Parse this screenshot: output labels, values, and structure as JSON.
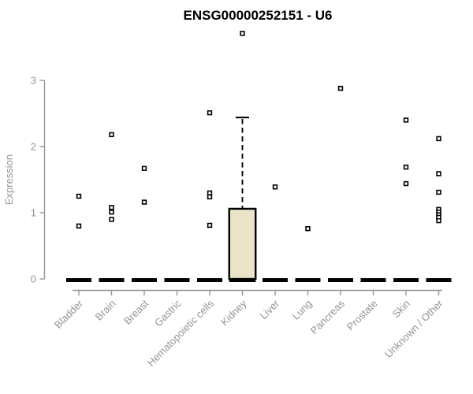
{
  "chart_data": {
    "type": "boxplot",
    "title": "ENSG00000252151 - U6",
    "ylabel": "Expression",
    "ylim": [
      0,
      3
    ],
    "yticks": [
      0,
      1,
      2,
      3
    ],
    "grid": false,
    "legend": "none",
    "categories": [
      "Bladder",
      "Brain",
      "Breast",
      "Gastric",
      "Hematopoietic cells",
      "Kidney",
      "Liver",
      "Lung",
      "Pancreas",
      "Prostate",
      "Skin",
      "Unknown / Other"
    ],
    "series": [
      {
        "name": "Bladder",
        "median": 0,
        "q1": 0,
        "q3": 0,
        "whisker_low": 0,
        "whisker_high": 0,
        "outliers": [
          1.25,
          0.8
        ]
      },
      {
        "name": "Brain",
        "median": 0,
        "q1": 0,
        "q3": 0,
        "whisker_low": 0,
        "whisker_high": 0,
        "outliers": [
          2.18,
          1.08,
          1.01,
          0.9
        ]
      },
      {
        "name": "Breast",
        "median": 0,
        "q1": 0,
        "q3": 0,
        "whisker_low": 0,
        "whisker_high": 0,
        "outliers": [
          1.67,
          1.16
        ]
      },
      {
        "name": "Gastric",
        "median": 0,
        "q1": 0,
        "q3": 0,
        "whisker_low": 0,
        "whisker_high": 0,
        "outliers": []
      },
      {
        "name": "Hematopoietic cells",
        "median": 0,
        "q1": 0,
        "q3": 0,
        "whisker_low": 0,
        "whisker_high": 0,
        "outliers": [
          2.51,
          1.3,
          1.24,
          0.81
        ]
      },
      {
        "name": "Kidney",
        "median": 0,
        "q1": 0,
        "q3": 1.06,
        "whisker_low": 0,
        "whisker_high": 2.44,
        "outliers": [
          3.71
        ]
      },
      {
        "name": "Liver",
        "median": 0,
        "q1": 0,
        "q3": 0,
        "whisker_low": 0,
        "whisker_high": 0,
        "outliers": [
          1.39
        ]
      },
      {
        "name": "Lung",
        "median": 0,
        "q1": 0,
        "q3": 0,
        "whisker_low": 0,
        "whisker_high": 0,
        "outliers": [
          0.76
        ]
      },
      {
        "name": "Pancreas",
        "median": 0,
        "q1": 0,
        "q3": 0,
        "whisker_low": 0,
        "whisker_high": 0,
        "outliers": [
          2.88
        ]
      },
      {
        "name": "Prostate",
        "median": 0,
        "q1": 0,
        "q3": 0,
        "whisker_low": 0,
        "whisker_high": 0,
        "outliers": []
      },
      {
        "name": "Skin",
        "median": 0,
        "q1": 0,
        "q3": 0,
        "whisker_low": 0,
        "whisker_high": 0,
        "outliers": [
          2.4,
          1.69,
          1.44
        ]
      },
      {
        "name": "Unknown / Other",
        "median": 0,
        "q1": 0,
        "q3": 0,
        "whisker_low": 0,
        "whisker_high": 0,
        "outliers": [
          2.12,
          1.59,
          1.31,
          1.05,
          1.01,
          0.97,
          0.93,
          0.88
        ]
      }
    ],
    "colors": {
      "background": "#ffffff",
      "title": "#000000",
      "axis": "#949494",
      "tick_label": "#949494",
      "box_fill": "#EBE4C9",
      "box_stroke": "#000000",
      "median": "#000000",
      "marker_stroke": "#000000",
      "marker_fill": "#ffffff"
    }
  }
}
